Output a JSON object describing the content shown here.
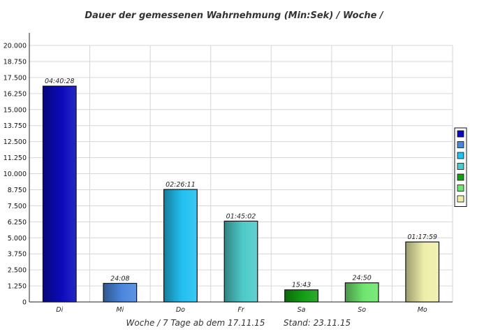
{
  "chart_data": {
    "type": "bar",
    "title": "Dauer der gemessenen Wahrnehmung (Min:Sek) / Woche /",
    "categories": [
      "Di",
      "Mi",
      "Do",
      "Fr",
      "Sa",
      "So",
      "Mo"
    ],
    "values": [
      16828,
      1448,
      8771,
      6302,
      943,
      1490,
      4679
    ],
    "data_labels": [
      "04:40:28",
      "24:08",
      "02:26:11",
      "01:45:02",
      "15:43",
      "24:50",
      "01:17:59"
    ],
    "bar_colors": [
      "#0a0abb",
      "#4a86dc",
      "#22c0f0",
      "#4dcac8",
      "#139e13",
      "#6ee56e",
      "#eeeeaa"
    ],
    "ylim": [
      0,
      20000
    ],
    "yticks": [
      "0",
      "1.250",
      "2.500",
      "3.750",
      "5.000",
      "6.250",
      "7.500",
      "8.750",
      "10.000",
      "11.250",
      "12.500",
      "13.750",
      "15.000",
      "16.250",
      "17.500",
      "18.750",
      "20.000"
    ],
    "grid": true,
    "legend": "right",
    "footer_left": "Woche / 7 Tage ab dem 17.11.15",
    "footer_right": "Stand: 23.11.15"
  }
}
